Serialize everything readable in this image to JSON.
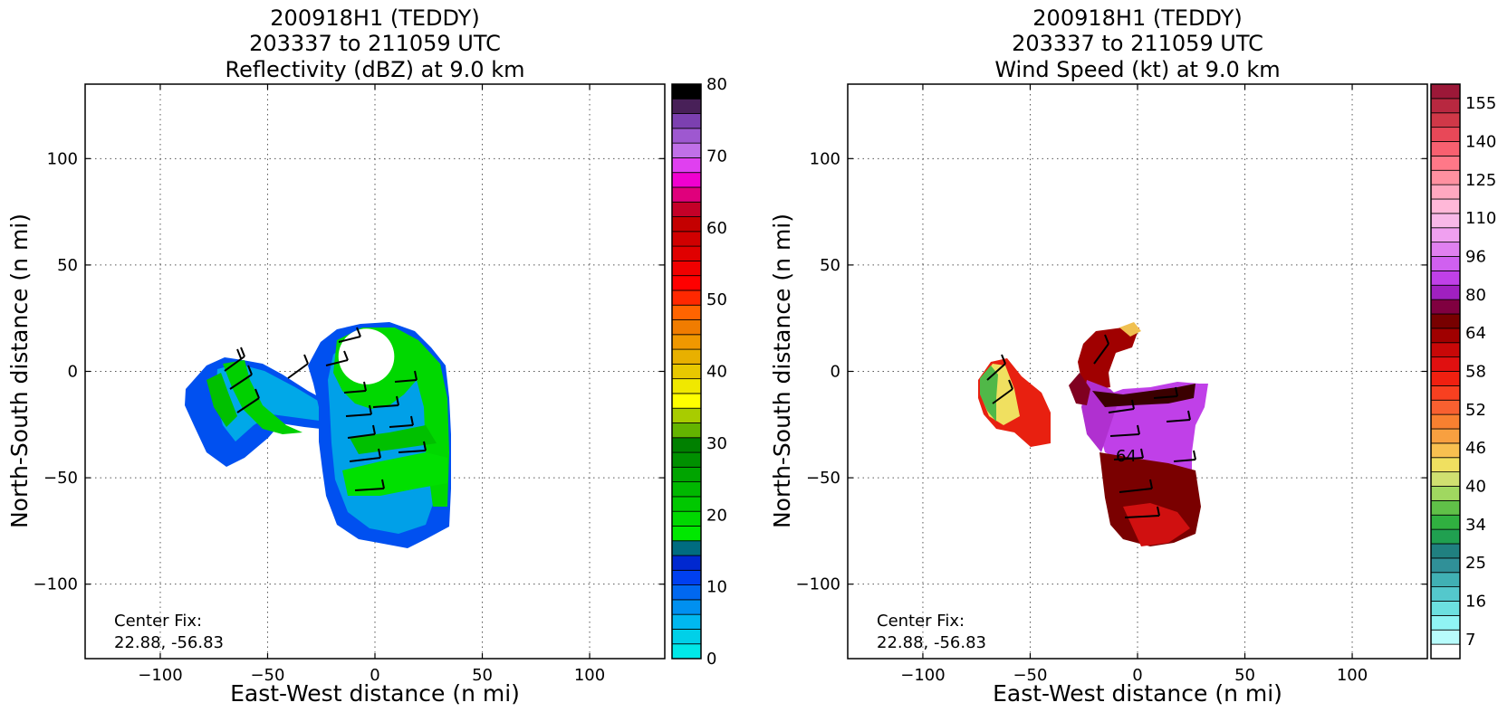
{
  "chart_data": [
    {
      "type": "heatmap",
      "title_lines": [
        "200918H1 (TEDDY)",
        "203337 to 211059 UTC",
        "Reflectivity (dBZ) at 9.0 km"
      ],
      "xlabel": "East-West distance (n mi)",
      "ylabel": "North-South distance (n mi)",
      "xlim": [
        -135,
        135
      ],
      "ylim": [
        -135,
        135
      ],
      "xticks": [
        -100,
        -50,
        0,
        50,
        100
      ],
      "yticks": [
        -100,
        -50,
        0,
        50,
        100
      ],
      "grid": true,
      "annotation_lines": [
        "Center Fix:",
        "22.88, -56.83"
      ],
      "colorbar": {
        "min": 0,
        "max": 80,
        "ticks": [
          0,
          10,
          20,
          30,
          40,
          50,
          60,
          70,
          80
        ],
        "colors": [
          "#00e8e8",
          "#00d0e8",
          "#00b8f0",
          "#0090f0",
          "#0068f0",
          "#0040f0",
          "#0028d0",
          "#006c80",
          "#00e800",
          "#00d800",
          "#00c800",
          "#00b800",
          "#00a400",
          "#009000",
          "#008000",
          "#64b400",
          "#a8cc00",
          "#ffff00",
          "#f0e800",
          "#e8c800",
          "#e8b000",
          "#f09800",
          "#f07c00",
          "#ff6400",
          "#ff2800",
          "#ff0000",
          "#f00000",
          "#e00000",
          "#d00000",
          "#c40000",
          "#c40028",
          "#e0007c",
          "#f000d0",
          "#e040f0",
          "#c070e8",
          "#9e58d0",
          "#7c40b0",
          "#482058",
          "#000000"
        ]
      },
      "eye_center": [
        -4,
        7
      ],
      "eye_radius": 13
    },
    {
      "type": "heatmap",
      "title_lines": [
        "200918H1 (TEDDY)",
        "203337 to 211059 UTC",
        "Wind Speed (kt) at 9.0 km"
      ],
      "xlabel": "East-West distance (n mi)",
      "ylabel": "North-South distance (n mi)",
      "xlim": [
        -135,
        135
      ],
      "ylim": [
        -135,
        135
      ],
      "xticks": [
        -100,
        -50,
        0,
        50,
        100
      ],
      "yticks": [
        -100,
        -50,
        0,
        50,
        100
      ],
      "grid": true,
      "annotation_lines": [
        "Center Fix:",
        "22.88, -56.83"
      ],
      "contour_label": "64",
      "colorbar": {
        "ticks": [
          "7",
          "16",
          "25",
          "34",
          "40",
          "46",
          "52",
          "58",
          "64",
          "80",
          "96",
          "110",
          "125",
          "140",
          "155"
        ],
        "colors": [
          "#ffffff",
          "#b8fcfc",
          "#90f4f4",
          "#6ce0e0",
          "#54c8cc",
          "#40b0b4",
          "#309098",
          "#208080",
          "#20a050",
          "#30b040",
          "#60c048",
          "#a0d860",
          "#d0e070",
          "#f0e060",
          "#f8c050",
          "#f8a040",
          "#f88030",
          "#f86030",
          "#f84020",
          "#f02010",
          "#e01010",
          "#c80808",
          "#a00000",
          "#780000",
          "#800040",
          "#a020c0",
          "#c040e8",
          "#d060f0",
          "#e080f0",
          "#f0a0f0",
          "#f8b8e8",
          "#ffb8d8",
          "#ffa8c0",
          "#ff90a0",
          "#ff7888",
          "#f86070",
          "#e84858",
          "#d03848",
          "#b82840",
          "#9c1838"
        ]
      }
    }
  ]
}
